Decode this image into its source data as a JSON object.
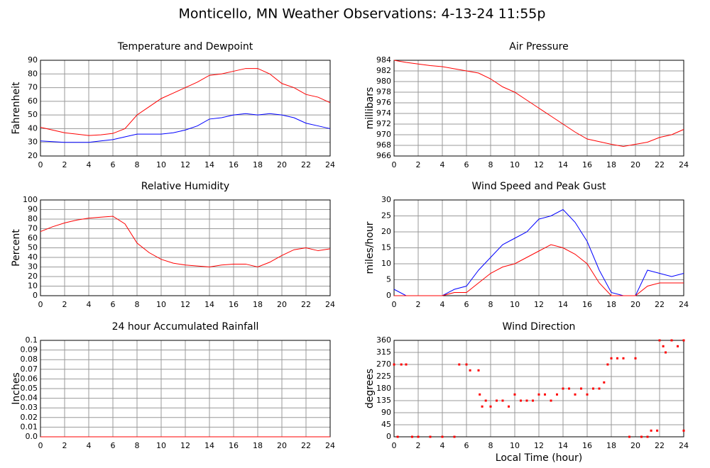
{
  "title": "Monticello, MN Weather Observations: 4-13-24 11:55p",
  "chart_data": [
    {
      "type": "line",
      "title": "Temperature and Dewpoint",
      "ylabel": "Fahrenheit",
      "x": [
        0,
        1,
        2,
        3,
        4,
        5,
        6,
        7,
        8,
        9,
        10,
        11,
        12,
        13,
        14,
        15,
        16,
        17,
        18,
        19,
        20,
        21,
        22,
        23,
        24
      ],
      "series": [
        {
          "color": "#ff0000",
          "values": [
            41,
            39,
            37,
            36,
            35,
            35.5,
            36.5,
            40,
            50,
            56,
            62,
            66,
            70,
            74,
            79,
            80,
            82,
            84,
            84,
            80,
            73,
            70,
            65,
            63,
            59
          ]
        },
        {
          "color": "#0000ff",
          "values": [
            31,
            30.5,
            30,
            30,
            30,
            31,
            32,
            34,
            36,
            36,
            36,
            37,
            39,
            42,
            47,
            48,
            50,
            51,
            50,
            51,
            50,
            48,
            44,
            42,
            40
          ]
        }
      ],
      "xlim": [
        0,
        24
      ],
      "xticks": [
        0,
        2,
        4,
        6,
        8,
        10,
        12,
        14,
        16,
        18,
        20,
        22,
        24
      ],
      "ylim": [
        20,
        90
      ],
      "yticks": [
        20,
        30,
        40,
        50,
        60,
        70,
        80,
        90
      ],
      "grid": true
    },
    {
      "type": "line",
      "title": "Air Pressure",
      "ylabel": "millibars",
      "x": [
        0,
        1,
        2,
        3,
        4,
        5,
        6,
        7,
        8,
        9,
        10,
        11,
        12,
        13,
        14,
        15,
        16,
        17,
        18,
        19,
        20,
        21,
        22,
        23,
        24
      ],
      "series": [
        {
          "color": "#ff0000",
          "values": [
            984,
            983.6,
            983.3,
            983,
            982.8,
            982.4,
            982,
            981.6,
            980.5,
            979,
            978,
            976.5,
            975,
            973.5,
            972,
            970.5,
            969.2,
            968.7,
            968.2,
            967.8,
            968.2,
            968.6,
            969.5,
            970,
            971
          ]
        }
      ],
      "xlim": [
        0,
        24
      ],
      "xticks": [
        0,
        2,
        4,
        6,
        8,
        10,
        12,
        14,
        16,
        18,
        20,
        22,
        24
      ],
      "ylim": [
        966,
        984
      ],
      "yticks": [
        966,
        968,
        970,
        972,
        974,
        976,
        978,
        980,
        982,
        984
      ],
      "grid": true
    },
    {
      "type": "line",
      "title": "Relative Humidity",
      "ylabel": "Percent",
      "x": [
        0,
        1,
        2,
        3,
        4,
        5,
        6,
        7,
        8,
        9,
        10,
        11,
        12,
        13,
        14,
        15,
        16,
        17,
        18,
        19,
        20,
        21,
        22,
        23,
        24
      ],
      "series": [
        {
          "color": "#ff0000",
          "values": [
            67,
            72,
            76,
            79,
            81,
            82,
            83,
            75,
            55,
            45,
            38,
            34,
            32,
            31,
            30,
            32,
            33,
            33,
            30,
            35,
            42,
            48,
            50,
            47,
            49
          ]
        }
      ],
      "xlim": [
        0,
        24
      ],
      "xticks": [
        0,
        2,
        4,
        6,
        8,
        10,
        12,
        14,
        16,
        18,
        20,
        22,
        24
      ],
      "ylim": [
        0,
        100
      ],
      "yticks": [
        0,
        10,
        20,
        30,
        40,
        50,
        60,
        70,
        80,
        90,
        100
      ],
      "grid": true
    },
    {
      "type": "line",
      "title": "Wind Speed and Peak Gust",
      "ylabel": "miles/hour",
      "x": [
        0,
        1,
        2,
        3,
        4,
        5,
        6,
        7,
        8,
        9,
        10,
        11,
        12,
        13,
        14,
        15,
        16,
        17,
        18,
        19,
        20,
        21,
        22,
        23,
        24
      ],
      "series": [
        {
          "color": "#0000ff",
          "values": [
            2,
            0,
            0,
            0,
            0,
            2,
            3,
            8,
            12,
            16,
            18,
            20,
            24,
            25,
            27,
            23,
            17,
            8,
            1,
            0,
            0,
            8,
            7,
            6,
            7
          ]
        },
        {
          "color": "#ff0000",
          "values": [
            0,
            0,
            0,
            0,
            0,
            1,
            1,
            4,
            7,
            9,
            10,
            12,
            14,
            16,
            15,
            13,
            10,
            4,
            0,
            0,
            0,
            3,
            4,
            4,
            4
          ]
        }
      ],
      "xlim": [
        0,
        24
      ],
      "xticks": [
        0,
        2,
        4,
        6,
        8,
        10,
        12,
        14,
        16,
        18,
        20,
        22,
        24
      ],
      "ylim": [
        0,
        30
      ],
      "yticks": [
        0,
        5,
        10,
        15,
        20,
        25,
        30
      ],
      "grid": true
    },
    {
      "type": "line",
      "title": "24 hour Accumulated Rainfall",
      "ylabel": "Inches",
      "x": [
        0,
        24
      ],
      "series": [
        {
          "color": "#ff0000",
          "values": [
            0,
            0
          ]
        }
      ],
      "xlim": [
        0,
        24
      ],
      "xticks": [
        0,
        2,
        4,
        6,
        8,
        10,
        12,
        14,
        16,
        18,
        20,
        22,
        24
      ],
      "ylim": [
        0,
        0.1
      ],
      "yticks": [
        {
          "value": 0,
          "label": "0.0"
        },
        0.01,
        0.02,
        0.03,
        0.04,
        0.05,
        0.06,
        0.07,
        0.08,
        0.09,
        0.1
      ],
      "grid": true
    },
    {
      "type": "scatter",
      "title": "Wind Direction",
      "ylabel": "degrees",
      "xlabel": "Local Time (hour)",
      "x": [
        0,
        0.3,
        0.6,
        1,
        1.5,
        2,
        3,
        4,
        5,
        5.4,
        6,
        6.3,
        7,
        7.1,
        7.3,
        7.6,
        8,
        8.5,
        9,
        9.5,
        10,
        10.5,
        11,
        11.5,
        12,
        12.5,
        13,
        13.5,
        14,
        14.5,
        15,
        15.5,
        16,
        16.5,
        17,
        17.4,
        17.7,
        18,
        18.5,
        19,
        19.5,
        20,
        20.5,
        21,
        21.3,
        21.8,
        22,
        22.3,
        22.5,
        23,
        23.5,
        24,
        24
      ],
      "series": [
        {
          "color": "#ff0000",
          "values": [
            270,
            0,
            270,
            270,
            0,
            0,
            0,
            0,
            0,
            270,
            270,
            248,
            248,
            158,
            113,
            135,
            113,
            135,
            135,
            113,
            158,
            135,
            135,
            135,
            158,
            158,
            135,
            158,
            180,
            180,
            158,
            180,
            158,
            180,
            180,
            203,
            270,
            293,
            293,
            293,
            0,
            293,
            0,
            0,
            23,
            23,
            360,
            338,
            315,
            360,
            338,
            23,
            360
          ]
        }
      ],
      "xlim": [
        0,
        24
      ],
      "xticks": [
        0,
        2,
        4,
        6,
        8,
        10,
        12,
        14,
        16,
        18,
        20,
        22,
        24
      ],
      "ylim": [
        0,
        360
      ],
      "yticks": [
        0,
        45,
        90,
        135,
        180,
        225,
        270,
        315,
        360
      ],
      "grid": true
    }
  ]
}
